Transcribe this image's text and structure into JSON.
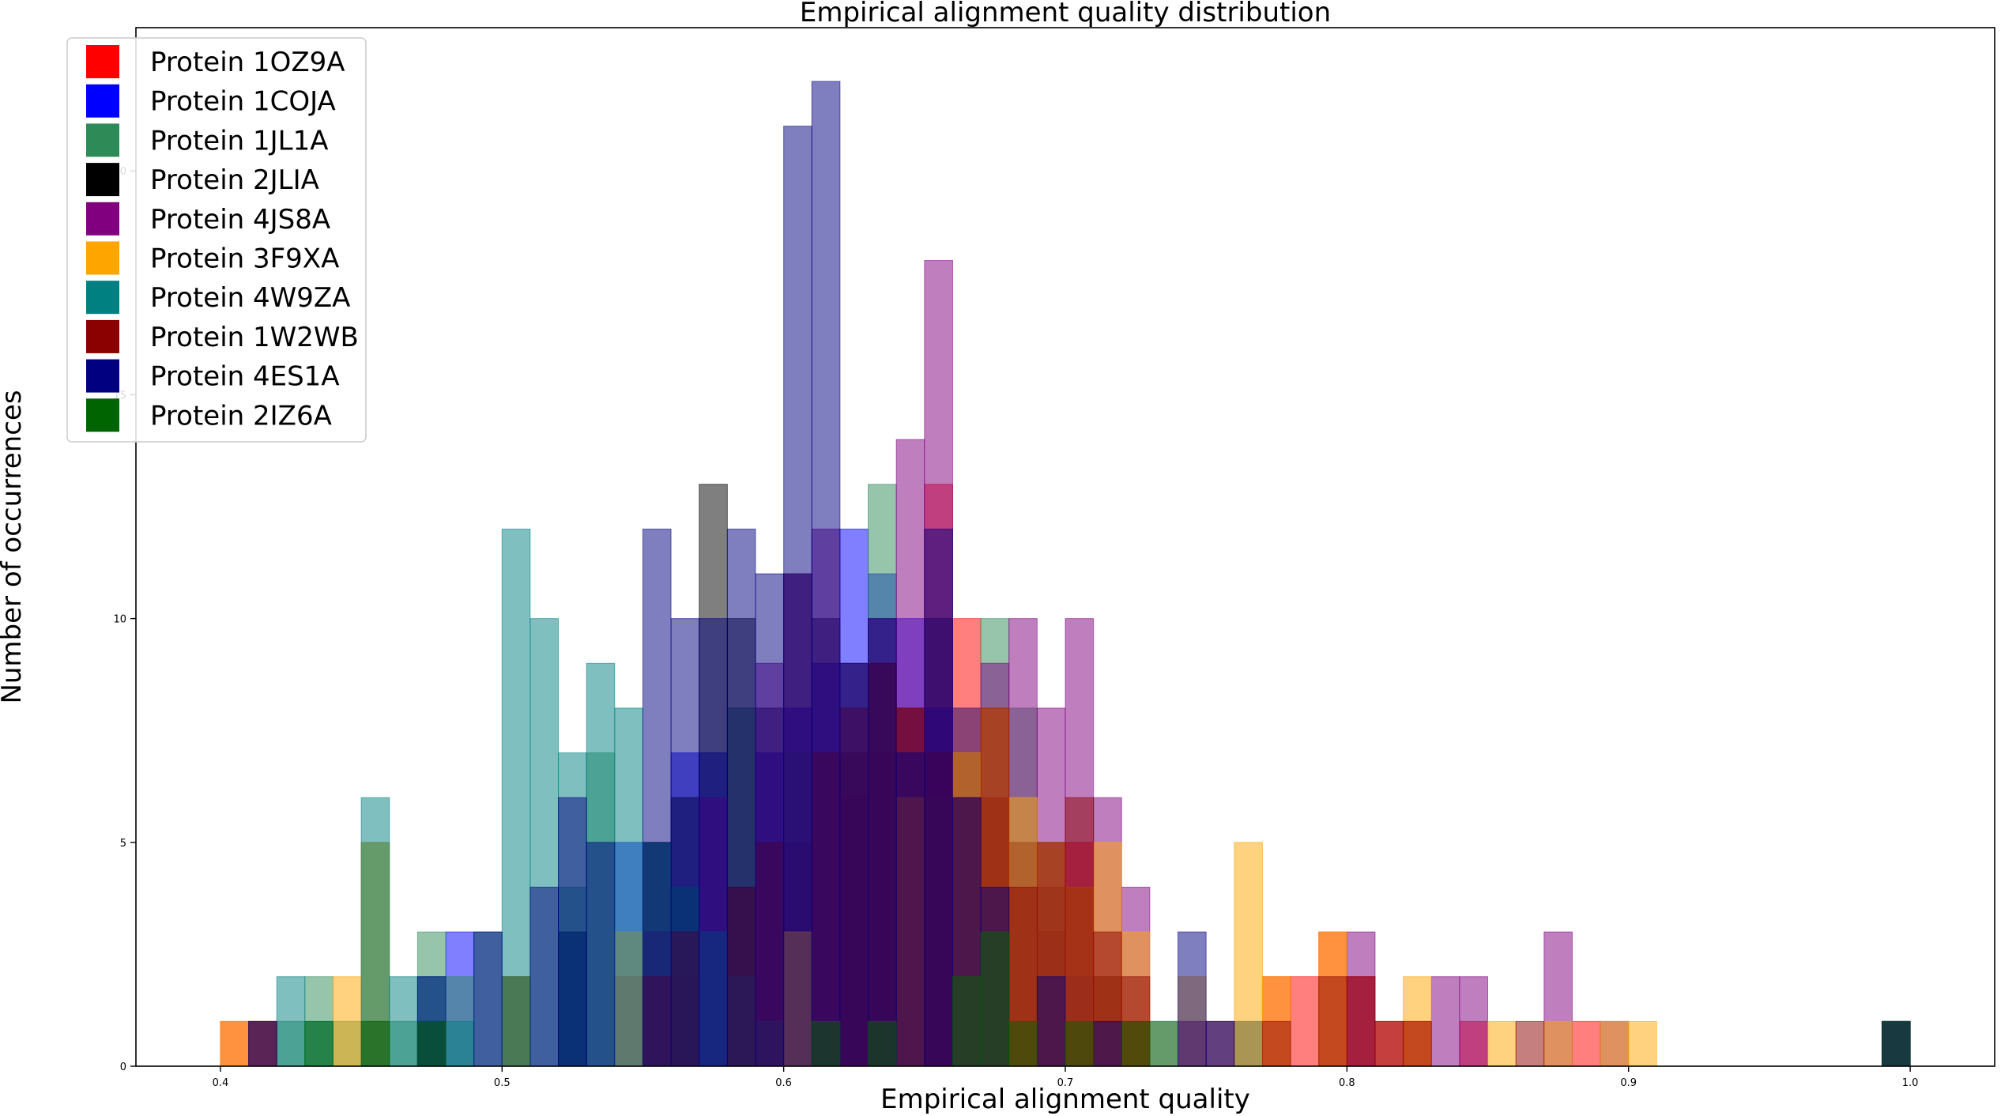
{
  "chart_data": {
    "type": "bar",
    "title": "Empirical alignment quality distribution",
    "xlabel": "Empirical alignment quality",
    "ylabel": "Number of occurrences",
    "xlim": [
      0.37,
      1.03
    ],
    "ylim": [
      0,
      23.2
    ],
    "xticks": [
      0.4,
      0.5,
      0.6,
      0.7,
      0.8,
      0.9,
      1.0
    ],
    "xtick_labels": [
      "0.4",
      "0.5",
      "0.6",
      "0.7",
      "0.8",
      "0.9",
      "1.0"
    ],
    "yticks": [
      0,
      5,
      10,
      15,
      20
    ],
    "ytick_labels": [
      "0",
      "5",
      "10",
      "15",
      "20"
    ],
    "legend_position": "top-left",
    "histtype": "stepfilled",
    "alpha": 0.5,
    "series": [
      {
        "name": "Protein 1OZ9A",
        "color": "#ff0000",
        "bins": [
          [
            0.4,
            0.41,
            1
          ],
          [
            0.55,
            0.56,
            3
          ],
          [
            0.56,
            0.57,
            2
          ],
          [
            0.58,
            0.59,
            4
          ],
          [
            0.6,
            0.61,
            5
          ],
          [
            0.62,
            0.63,
            6
          ],
          [
            0.63,
            0.64,
            7
          ],
          [
            0.64,
            0.65,
            6
          ],
          [
            0.65,
            0.66,
            13
          ],
          [
            0.66,
            0.67,
            10
          ],
          [
            0.67,
            0.68,
            6
          ],
          [
            0.68,
            0.69,
            5
          ],
          [
            0.69,
            0.7,
            3
          ],
          [
            0.7,
            0.71,
            5
          ],
          [
            0.71,
            0.72,
            2
          ],
          [
            0.72,
            0.73,
            1
          ],
          [
            0.77,
            0.78,
            2
          ],
          [
            0.78,
            0.79,
            2
          ],
          [
            0.79,
            0.8,
            3
          ],
          [
            0.8,
            0.81,
            2
          ],
          [
            0.81,
            0.82,
            1
          ],
          [
            0.82,
            0.83,
            1
          ],
          [
            0.84,
            0.85,
            1
          ],
          [
            0.88,
            0.89,
            1
          ]
        ]
      },
      {
        "name": "Protein 1COJA",
        "color": "#0000ff",
        "bins": [
          [
            0.48,
            0.49,
            3
          ],
          [
            0.5,
            0.51,
            2
          ],
          [
            0.52,
            0.53,
            3
          ],
          [
            0.54,
            0.55,
            5
          ],
          [
            0.56,
            0.57,
            7
          ],
          [
            0.57,
            0.58,
            10
          ],
          [
            0.59,
            0.6,
            7
          ],
          [
            0.6,
            0.61,
            8
          ],
          [
            0.61,
            0.62,
            9
          ],
          [
            0.62,
            0.63,
            12
          ],
          [
            0.63,
            0.64,
            11
          ],
          [
            0.64,
            0.65,
            10
          ],
          [
            0.65,
            0.66,
            8
          ],
          [
            0.66,
            0.67,
            6
          ],
          [
            0.67,
            0.68,
            4
          ],
          [
            0.69,
            0.7,
            3
          ],
          [
            0.7,
            0.71,
            2
          ],
          [
            0.74,
            0.75,
            1
          ],
          [
            0.76,
            0.77,
            1
          ],
          [
            0.99,
            1.0,
            1
          ]
        ]
      },
      {
        "name": "Protein 1JL1A",
        "color": "#2e8b57",
        "bins": [
          [
            0.42,
            0.43,
            1
          ],
          [
            0.43,
            0.44,
            2
          ],
          [
            0.44,
            0.45,
            1
          ],
          [
            0.45,
            0.46,
            5
          ],
          [
            0.46,
            0.47,
            1
          ],
          [
            0.47,
            0.48,
            3
          ],
          [
            0.48,
            0.49,
            2
          ],
          [
            0.5,
            0.51,
            2
          ],
          [
            0.52,
            0.53,
            4
          ],
          [
            0.53,
            0.54,
            7
          ],
          [
            0.55,
            0.56,
            5
          ],
          [
            0.56,
            0.57,
            4
          ],
          [
            0.58,
            0.59,
            8
          ],
          [
            0.6,
            0.61,
            7
          ],
          [
            0.62,
            0.63,
            9
          ],
          [
            0.63,
            0.64,
            13
          ],
          [
            0.65,
            0.66,
            6
          ],
          [
            0.66,
            0.67,
            8
          ],
          [
            0.67,
            0.68,
            10
          ],
          [
            0.68,
            0.69,
            8
          ],
          [
            0.69,
            0.7,
            5
          ],
          [
            0.71,
            0.72,
            2
          ],
          [
            0.73,
            0.74,
            1
          ],
          [
            0.76,
            0.77,
            1
          ]
        ]
      },
      {
        "name": "Protein 2JLIA",
        "color": "#000000",
        "bins": [
          [
            0.45,
            0.46,
            1
          ],
          [
            0.47,
            0.48,
            1
          ],
          [
            0.5,
            0.51,
            2
          ],
          [
            0.52,
            0.53,
            3
          ],
          [
            0.55,
            0.56,
            5
          ],
          [
            0.56,
            0.57,
            6
          ],
          [
            0.57,
            0.58,
            13
          ],
          [
            0.58,
            0.59,
            10
          ],
          [
            0.59,
            0.6,
            8
          ],
          [
            0.6,
            0.61,
            11
          ],
          [
            0.61,
            0.62,
            10
          ],
          [
            0.62,
            0.63,
            7
          ],
          [
            0.63,
            0.64,
            9
          ],
          [
            0.64,
            0.65,
            8
          ],
          [
            0.65,
            0.66,
            10
          ],
          [
            0.66,
            0.67,
            7
          ],
          [
            0.67,
            0.68,
            6
          ],
          [
            0.68,
            0.69,
            5
          ],
          [
            0.69,
            0.7,
            4
          ],
          [
            0.7,
            0.71,
            4
          ],
          [
            0.71,
            0.72,
            2
          ],
          [
            0.72,
            0.73,
            1
          ],
          [
            0.99,
            1.0,
            1
          ]
        ]
      },
      {
        "name": "Protein 4JS8A",
        "color": "#800080",
        "bins": [
          [
            0.41,
            0.42,
            1
          ],
          [
            0.54,
            0.55,
            2
          ],
          [
            0.55,
            0.56,
            3
          ],
          [
            0.57,
            0.58,
            6
          ],
          [
            0.59,
            0.6,
            9
          ],
          [
            0.6,
            0.61,
            11
          ],
          [
            0.61,
            0.62,
            12
          ],
          [
            0.62,
            0.63,
            9
          ],
          [
            0.63,
            0.64,
            10
          ],
          [
            0.64,
            0.65,
            14
          ],
          [
            0.65,
            0.66,
            18
          ],
          [
            0.66,
            0.67,
            8
          ],
          [
            0.67,
            0.68,
            9
          ],
          [
            0.68,
            0.69,
            10
          ],
          [
            0.69,
            0.7,
            8
          ],
          [
            0.7,
            0.71,
            10
          ],
          [
            0.71,
            0.72,
            6
          ],
          [
            0.72,
            0.73,
            4
          ],
          [
            0.74,
            0.75,
            1
          ],
          [
            0.8,
            0.81,
            3
          ],
          [
            0.83,
            0.84,
            2
          ],
          [
            0.84,
            0.85,
            2
          ],
          [
            0.87,
            0.88,
            3
          ],
          [
            0.89,
            0.9,
            1
          ],
          [
            0.99,
            1.0,
            1
          ]
        ]
      },
      {
        "name": "Protein 3F9XA",
        "color": "#ffa500",
        "bins": [
          [
            0.4,
            0.41,
            1
          ],
          [
            0.41,
            0.42,
            1
          ],
          [
            0.44,
            0.45,
            2
          ],
          [
            0.45,
            0.46,
            5
          ],
          [
            0.5,
            0.51,
            2
          ],
          [
            0.54,
            0.55,
            3
          ],
          [
            0.6,
            0.61,
            3
          ],
          [
            0.64,
            0.65,
            6
          ],
          [
            0.66,
            0.67,
            7
          ],
          [
            0.67,
            0.68,
            8
          ],
          [
            0.68,
            0.69,
            6
          ],
          [
            0.69,
            0.7,
            5
          ],
          [
            0.7,
            0.71,
            4
          ],
          [
            0.71,
            0.72,
            5
          ],
          [
            0.72,
            0.73,
            3
          ],
          [
            0.73,
            0.74,
            1
          ],
          [
            0.74,
            0.75,
            2
          ],
          [
            0.76,
            0.77,
            5
          ],
          [
            0.77,
            0.78,
            2
          ],
          [
            0.79,
            0.8,
            3
          ],
          [
            0.82,
            0.83,
            2
          ],
          [
            0.85,
            0.86,
            1
          ],
          [
            0.87,
            0.88,
            1
          ],
          [
            0.89,
            0.9,
            1
          ],
          [
            0.9,
            0.91,
            1
          ]
        ]
      },
      {
        "name": "Protein 4W9ZA",
        "color": "#008080",
        "bins": [
          [
            0.42,
            0.43,
            2
          ],
          [
            0.43,
            0.44,
            1
          ],
          [
            0.45,
            0.46,
            6
          ],
          [
            0.46,
            0.47,
            2
          ],
          [
            0.47,
            0.48,
            2
          ],
          [
            0.48,
            0.49,
            1
          ],
          [
            0.49,
            0.5,
            3
          ],
          [
            0.5,
            0.51,
            12
          ],
          [
            0.51,
            0.52,
            10
          ],
          [
            0.52,
            0.53,
            7
          ],
          [
            0.53,
            0.54,
            9
          ],
          [
            0.54,
            0.55,
            8
          ],
          [
            0.55,
            0.56,
            5
          ],
          [
            0.56,
            0.57,
            4
          ],
          [
            0.57,
            0.58,
            3
          ],
          [
            0.58,
            0.59,
            2
          ],
          [
            0.59,
            0.6,
            1
          ],
          [
            0.73,
            0.74,
            1
          ]
        ]
      },
      {
        "name": "Protein 1W2WB",
        "color": "#8b0000",
        "bins": [
          [
            0.41,
            0.42,
            1
          ],
          [
            0.55,
            0.56,
            2
          ],
          [
            0.56,
            0.57,
            3
          ],
          [
            0.58,
            0.59,
            4
          ],
          [
            0.59,
            0.6,
            5
          ],
          [
            0.61,
            0.62,
            7
          ],
          [
            0.62,
            0.63,
            8
          ],
          [
            0.63,
            0.64,
            9
          ],
          [
            0.64,
            0.65,
            8
          ],
          [
            0.65,
            0.66,
            7
          ],
          [
            0.66,
            0.67,
            6
          ],
          [
            0.67,
            0.68,
            8
          ],
          [
            0.68,
            0.69,
            4
          ],
          [
            0.69,
            0.7,
            5
          ],
          [
            0.7,
            0.71,
            6
          ],
          [
            0.71,
            0.72,
            3
          ],
          [
            0.72,
            0.73,
            2
          ],
          [
            0.75,
            0.76,
            1
          ],
          [
            0.77,
            0.78,
            1
          ],
          [
            0.79,
            0.8,
            2
          ],
          [
            0.8,
            0.81,
            2
          ],
          [
            0.81,
            0.82,
            1
          ],
          [
            0.82,
            0.83,
            1
          ],
          [
            0.86,
            0.87,
            1
          ]
        ]
      },
      {
        "name": "Protein 4ES1A",
        "color": "#000080",
        "bins": [
          [
            0.41,
            0.42,
            1
          ],
          [
            0.47,
            0.48,
            2
          ],
          [
            0.49,
            0.5,
            3
          ],
          [
            0.51,
            0.52,
            4
          ],
          [
            0.52,
            0.53,
            6
          ],
          [
            0.53,
            0.54,
            5
          ],
          [
            0.55,
            0.56,
            12
          ],
          [
            0.56,
            0.57,
            10
          ],
          [
            0.57,
            0.58,
            7
          ],
          [
            0.58,
            0.59,
            12
          ],
          [
            0.59,
            0.6,
            11
          ],
          [
            0.6,
            0.61,
            21
          ],
          [
            0.61,
            0.62,
            22
          ],
          [
            0.62,
            0.63,
            9
          ],
          [
            0.63,
            0.64,
            10
          ],
          [
            0.64,
            0.65,
            7
          ],
          [
            0.65,
            0.66,
            12
          ],
          [
            0.66,
            0.67,
            6
          ],
          [
            0.67,
            0.68,
            4
          ],
          [
            0.69,
            0.7,
            2
          ],
          [
            0.71,
            0.72,
            1
          ],
          [
            0.74,
            0.75,
            3
          ],
          [
            0.75,
            0.76,
            1
          ],
          [
            0.99,
            1.0,
            1
          ]
        ]
      },
      {
        "name": "Protein 2IZ6A",
        "color": "#006400",
        "bins": [
          [
            0.43,
            0.44,
            1
          ],
          [
            0.45,
            0.46,
            1
          ],
          [
            0.47,
            0.48,
            1
          ],
          [
            0.61,
            0.62,
            1
          ],
          [
            0.63,
            0.64,
            1
          ],
          [
            0.66,
            0.67,
            2
          ],
          [
            0.67,
            0.68,
            3
          ],
          [
            0.68,
            0.69,
            1
          ],
          [
            0.7,
            0.71,
            1
          ],
          [
            0.72,
            0.73,
            1
          ],
          [
            0.99,
            1.0,
            1
          ]
        ]
      }
    ]
  }
}
